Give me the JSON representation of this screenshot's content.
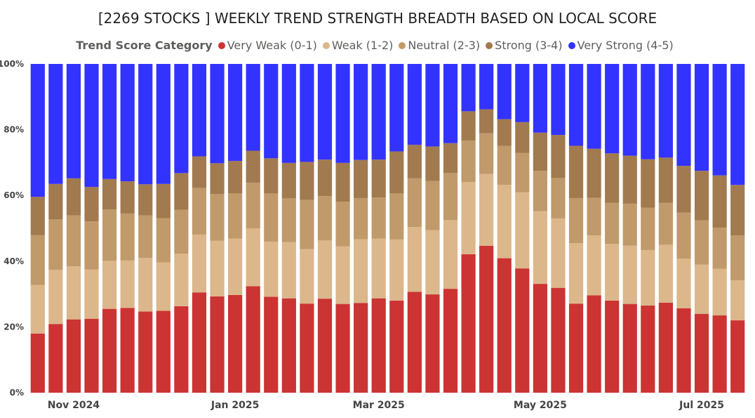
{
  "chart_data": {
    "type": "bar",
    "stacked": "percent",
    "title": "[2269 STOCKS ] WEEKLY TREND STRENGTH BREADTH BASED ON LOCAL SCORE",
    "legend_title": "Trend Score Category",
    "legend_position": "top",
    "y_ticks": [
      "0%",
      "20%",
      "40%",
      "60%",
      "80%",
      "100%"
    ],
    "ylim": [
      0,
      100
    ],
    "x_tick_labels": [
      {
        "label": "Nov 2024",
        "index": 2
      },
      {
        "label": "Jan 2025",
        "index": 11
      },
      {
        "label": "Mar 2025",
        "index": 19
      },
      {
        "label": "May 2025",
        "index": 28
      },
      {
        "label": "Jul 2025",
        "index": 37
      }
    ],
    "bar_count": 40,
    "series": [
      {
        "name": "Very Weak (0-1)",
        "color": "#cc3333",
        "values": [
          18,
          20.9,
          22.3,
          22.5,
          25.5,
          25.8,
          24.7,
          24.9,
          26.3,
          30.5,
          29.3,
          29.7,
          32.4,
          29.2,
          28.7,
          27.1,
          28.6,
          27,
          27.3,
          28.7,
          28,
          30.7,
          29.9,
          31.6,
          42.1,
          44.7,
          40.9,
          37.8,
          33.1,
          31.9,
          27.1,
          29.6,
          28,
          27,
          26.5,
          27.4,
          25.7,
          24,
          23.5,
          22
        ]
      },
      {
        "name": "Weak (1-2)",
        "color": "#dbb78b",
        "values": [
          14.8,
          16.5,
          16.1,
          15,
          14.6,
          14.4,
          16.3,
          14.7,
          16,
          17.6,
          16.9,
          17.2,
          17.6,
          16.7,
          17.1,
          16.6,
          17.7,
          17.5,
          19.4,
          18.2,
          18.6,
          19.7,
          19.5,
          20.9,
          22,
          21.8,
          22.3,
          23.2,
          22.1,
          21.1,
          18.4,
          18.2,
          17.3,
          17.7,
          16.9,
          17.6,
          15.1,
          15,
          14.2,
          12.2
        ]
      },
      {
        "name": "Neutral (2-3)",
        "color": "#c19a6b",
        "values": [
          15.1,
          15.3,
          15.5,
          14.6,
          15.6,
          14.3,
          12.9,
          13.5,
          13.3,
          14.2,
          14.2,
          13.7,
          13.9,
          14.7,
          13.3,
          14.9,
          13.5,
          13.6,
          12.5,
          12.5,
          14,
          14.8,
          15,
          14.3,
          12.6,
          12.4,
          11.9,
          11.9,
          12.3,
          12.3,
          13.7,
          11.5,
          12.5,
          12.8,
          12.9,
          12.8,
          14,
          13.4,
          12.5,
          13.6
        ]
      },
      {
        "name": "Strong (3-4)",
        "color": "#a27a4f",
        "values": [
          11.7,
          10.8,
          11.3,
          10.5,
          9.3,
          9.8,
          9.5,
          10.4,
          11.2,
          9.6,
          9.4,
          9.9,
          9.7,
          10.7,
          10.8,
          11.6,
          11.1,
          11.8,
          11.6,
          11.5,
          12.8,
          10.2,
          10.5,
          9.1,
          8.9,
          7.3,
          8.1,
          9.4,
          11.6,
          13.1,
          15.9,
          14.9,
          15,
          14.6,
          14.7,
          13.7,
          14.2,
          15.1,
          15.9,
          15.4
        ]
      },
      {
        "name": "Very Strong (4-5)",
        "color": "#3333ff",
        "values": [
          40.4,
          36.5,
          34.8,
          37.4,
          35,
          35.7,
          36.6,
          36.5,
          33.2,
          28.1,
          30.2,
          29.5,
          26.4,
          28.7,
          30.1,
          29.8,
          29.1,
          30.1,
          29.2,
          29.1,
          26.6,
          24.6,
          25.1,
          24.1,
          14.4,
          13.8,
          16.8,
          17.7,
          20.9,
          21.6,
          24.9,
          25.8,
          27.2,
          27.9,
          29,
          28.5,
          31,
          32.5,
          33.9,
          36.8
        ]
      }
    ]
  }
}
